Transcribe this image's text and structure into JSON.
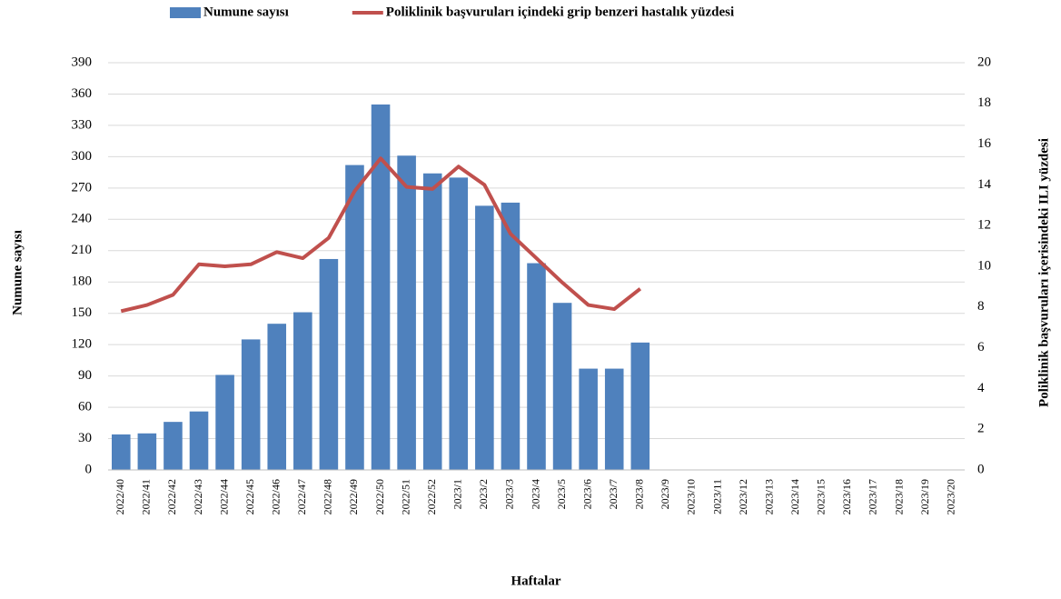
{
  "chart_data": {
    "type": "bar-line",
    "categories": [
      "2022/40",
      "2022/41",
      "2022/42",
      "2022/43",
      "2022/44",
      "2022/45",
      "2022/46",
      "2022/47",
      "2022/48",
      "2022/49",
      "2022/50",
      "2022/51",
      "2022/52",
      "2023/1",
      "2023/2",
      "2023/3",
      "2023/4",
      "2023/5",
      "2023/6",
      "2023/7",
      "2023/8",
      "2023/9",
      "2023/10",
      "2023/11",
      "2023/12",
      "2023/13",
      "2023/14",
      "2023/15",
      "2023/16",
      "2023/17",
      "2023/18",
      "2023/19",
      "2023/20"
    ],
    "series": [
      {
        "name": "Numune sayısı",
        "type": "bar",
        "color": "#4f81bd",
        "values": [
          34,
          35,
          46,
          56,
          91,
          125,
          140,
          151,
          202,
          292,
          350,
          301,
          284,
          280,
          253,
          256,
          198,
          160,
          97,
          97,
          122,
          null,
          null,
          null,
          null,
          null,
          null,
          null,
          null,
          null,
          null,
          null,
          null
        ]
      },
      {
        "name": "Poliklinik başvuruları içindeki grip benzeri hastalık yüzdesi",
        "type": "line",
        "axis": "y2",
        "color": "#c0504d",
        "values": [
          7.8,
          8.1,
          8.6,
          10.1,
          10.0,
          10.1,
          10.7,
          10.4,
          11.4,
          13.7,
          15.3,
          13.9,
          13.8,
          14.9,
          14.0,
          11.6,
          10.4,
          9.2,
          8.1,
          7.9,
          8.9,
          null,
          null,
          null,
          null,
          null,
          null,
          null,
          null,
          null,
          null,
          null,
          null
        ]
      }
    ],
    "x_label": "Haftalar",
    "y_label": "Numune sayısı",
    "y2_label": "Poliklinik başvuruları içerisindeki ILI yüzdesi",
    "ylim": [
      0,
      390
    ],
    "yticks": [
      0,
      30,
      60,
      90,
      120,
      150,
      180,
      210,
      240,
      270,
      300,
      330,
      360,
      390
    ],
    "y2lim": [
      0,
      20
    ],
    "y2ticks": [
      0,
      2,
      4,
      6,
      8,
      10,
      12,
      14,
      16,
      18,
      20
    ],
    "grid": true,
    "legend": "top"
  }
}
